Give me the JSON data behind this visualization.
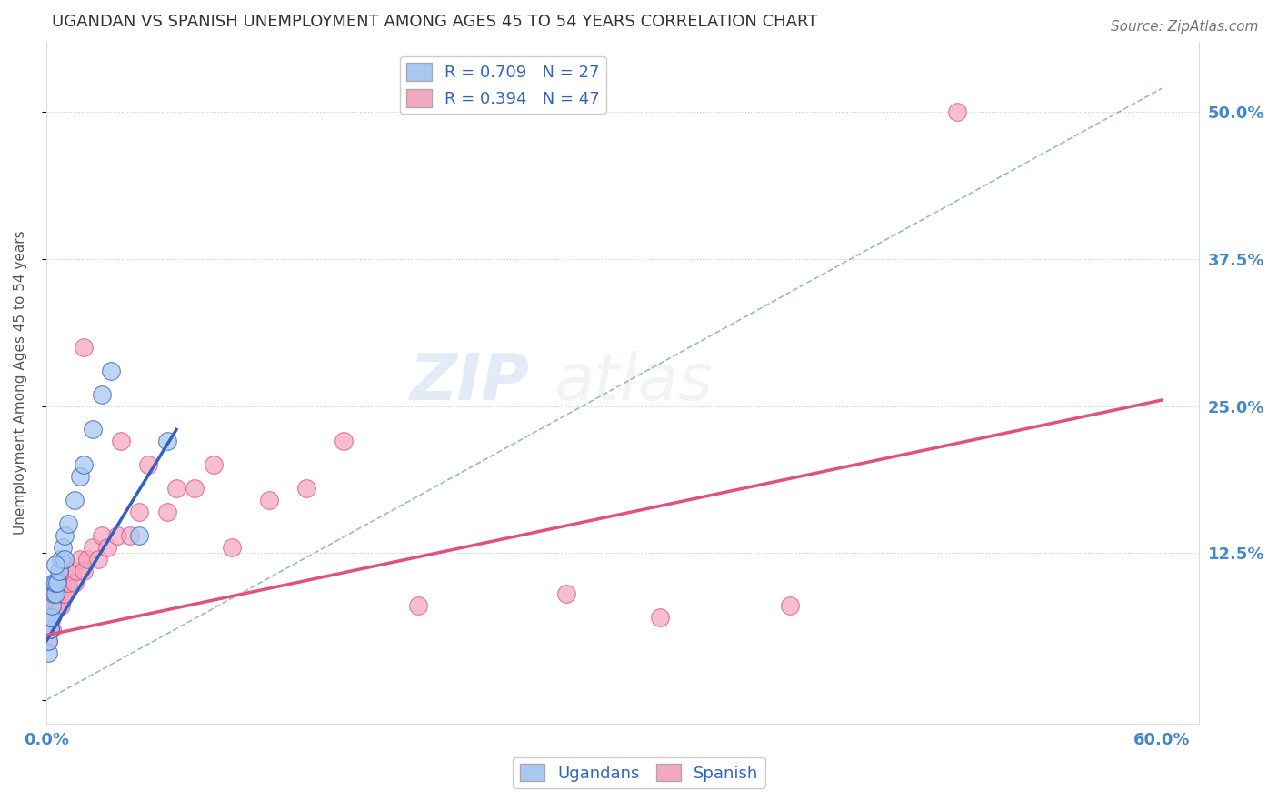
{
  "title": "UGANDAN VS SPANISH UNEMPLOYMENT AMONG AGES 45 TO 54 YEARS CORRELATION CHART",
  "source": "Source: ZipAtlas.com",
  "xlabel": "",
  "ylabel": "Unemployment Among Ages 45 to 54 years",
  "xlim": [
    0.0,
    0.62
  ],
  "ylim": [
    -0.02,
    0.56
  ],
  "xtick_positions": [
    0.0,
    0.1,
    0.2,
    0.3,
    0.4,
    0.5,
    0.6
  ],
  "xticklabels": [
    "0.0%",
    "",
    "",
    "",
    "",
    "",
    "60.0%"
  ],
  "ytick_positions": [
    0.0,
    0.125,
    0.25,
    0.375,
    0.5
  ],
  "ytick_right_labels": [
    "",
    "12.5%",
    "25.0%",
    "37.5%",
    "50.0%"
  ],
  "legend_ugandan": "R = 0.709   N = 27",
  "legend_spanish": "R = 0.394   N = 47",
  "ugandan_color": "#a8c8f0",
  "spanish_color": "#f4a8c0",
  "ugandan_trend_color": "#3060c0",
  "spanish_trend_color": "#e05080",
  "diagonal_color": "#6699cc",
  "background_color": "#ffffff",
  "ugandan_x": [
    0.001,
    0.001,
    0.002,
    0.002,
    0.002,
    0.003,
    0.003,
    0.004,
    0.004,
    0.005,
    0.005,
    0.006,
    0.007,
    0.008,
    0.009,
    0.01,
    0.01,
    0.012,
    0.015,
    0.018,
    0.02,
    0.025,
    0.03,
    0.035,
    0.05,
    0.065,
    0.005
  ],
  "ugandan_y": [
    0.04,
    0.05,
    0.06,
    0.06,
    0.07,
    0.07,
    0.08,
    0.09,
    0.1,
    0.09,
    0.1,
    0.1,
    0.11,
    0.12,
    0.13,
    0.12,
    0.14,
    0.15,
    0.17,
    0.19,
    0.2,
    0.23,
    0.26,
    0.28,
    0.14,
    0.22,
    0.115
  ],
  "ugandan_trend_x": [
    0.0,
    0.07
  ],
  "ugandan_trend_y": [
    0.05,
    0.23
  ],
  "spanish_x": [
    0.001,
    0.002,
    0.002,
    0.003,
    0.003,
    0.004,
    0.004,
    0.005,
    0.005,
    0.006,
    0.007,
    0.008,
    0.008,
    0.009,
    0.01,
    0.011,
    0.012,
    0.013,
    0.014,
    0.015,
    0.016,
    0.018,
    0.02,
    0.022,
    0.025,
    0.028,
    0.03,
    0.033,
    0.038,
    0.04,
    0.045,
    0.05,
    0.055,
    0.065,
    0.07,
    0.08,
    0.09,
    0.1,
    0.12,
    0.14,
    0.16,
    0.2,
    0.28,
    0.33,
    0.4,
    0.49,
    0.02
  ],
  "spanish_y": [
    0.05,
    0.06,
    0.07,
    0.06,
    0.07,
    0.08,
    0.09,
    0.08,
    0.09,
    0.08,
    0.09,
    0.08,
    0.1,
    0.09,
    0.09,
    0.1,
    0.1,
    0.11,
    0.11,
    0.1,
    0.11,
    0.12,
    0.11,
    0.12,
    0.13,
    0.12,
    0.14,
    0.13,
    0.14,
    0.22,
    0.14,
    0.16,
    0.2,
    0.16,
    0.18,
    0.18,
    0.2,
    0.13,
    0.17,
    0.18,
    0.22,
    0.08,
    0.09,
    0.07,
    0.08,
    0.5,
    0.3
  ],
  "spanish_trend_x": [
    0.0,
    0.6
  ],
  "spanish_trend_y": [
    0.055,
    0.255
  ]
}
